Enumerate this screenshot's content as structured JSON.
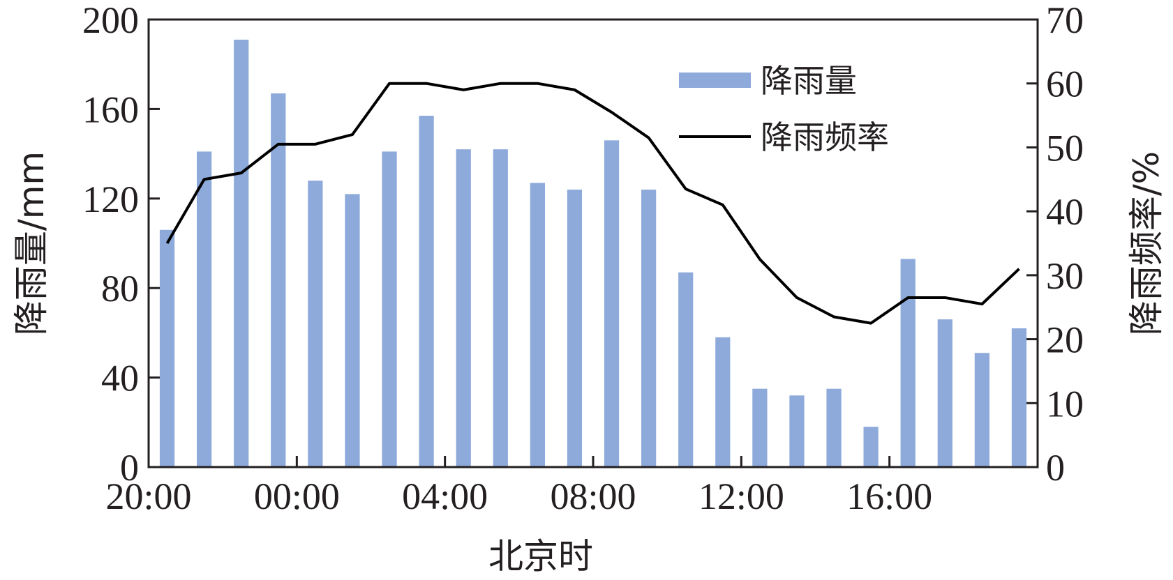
{
  "chart_data": {
    "type": "bar",
    "xlabel": "北京时",
    "ylabel": "降雨量/mm",
    "y2label": "降雨频率/%",
    "ylim": [
      0,
      200
    ],
    "y2lim": [
      0,
      70
    ],
    "yticks": [
      "0",
      "40",
      "80",
      "120",
      "160",
      "200"
    ],
    "y2ticks": [
      "0",
      "10",
      "20",
      "30",
      "40",
      "50",
      "60",
      "70"
    ],
    "xticks": [
      "20:00",
      "00:00",
      "04:00",
      "08:00",
      "12:00",
      "16:00"
    ],
    "hours": [
      "20:00",
      "21:00",
      "22:00",
      "23:00",
      "00:00",
      "01:00",
      "02:00",
      "03:00",
      "04:00",
      "05:00",
      "06:00",
      "07:00",
      "08:00",
      "09:00",
      "10:00",
      "11:00",
      "12:00",
      "13:00",
      "14:00",
      "15:00",
      "16:00",
      "17:00",
      "18:00",
      "19:00"
    ],
    "grid": false,
    "legend_position": "top-right",
    "series": [
      {
        "name": "降雨量",
        "type": "bar",
        "axis": "left",
        "color": "#8eaadb",
        "values": [
          106,
          141,
          191,
          167,
          128,
          122,
          141,
          157,
          142,
          142,
          127,
          124,
          146,
          124,
          87,
          58,
          35,
          32,
          35,
          18,
          93,
          66,
          51,
          62
        ]
      },
      {
        "name": "降雨频率",
        "type": "line",
        "axis": "right",
        "color": "#000000",
        "values": [
          35,
          45,
          46,
          50.5,
          50.5,
          52,
          60,
          60,
          59,
          60,
          60,
          59,
          55.5,
          51.5,
          43.5,
          41,
          32.5,
          26.5,
          23.5,
          22.5,
          26.5,
          26.5,
          25.5,
          31
        ]
      }
    ]
  }
}
